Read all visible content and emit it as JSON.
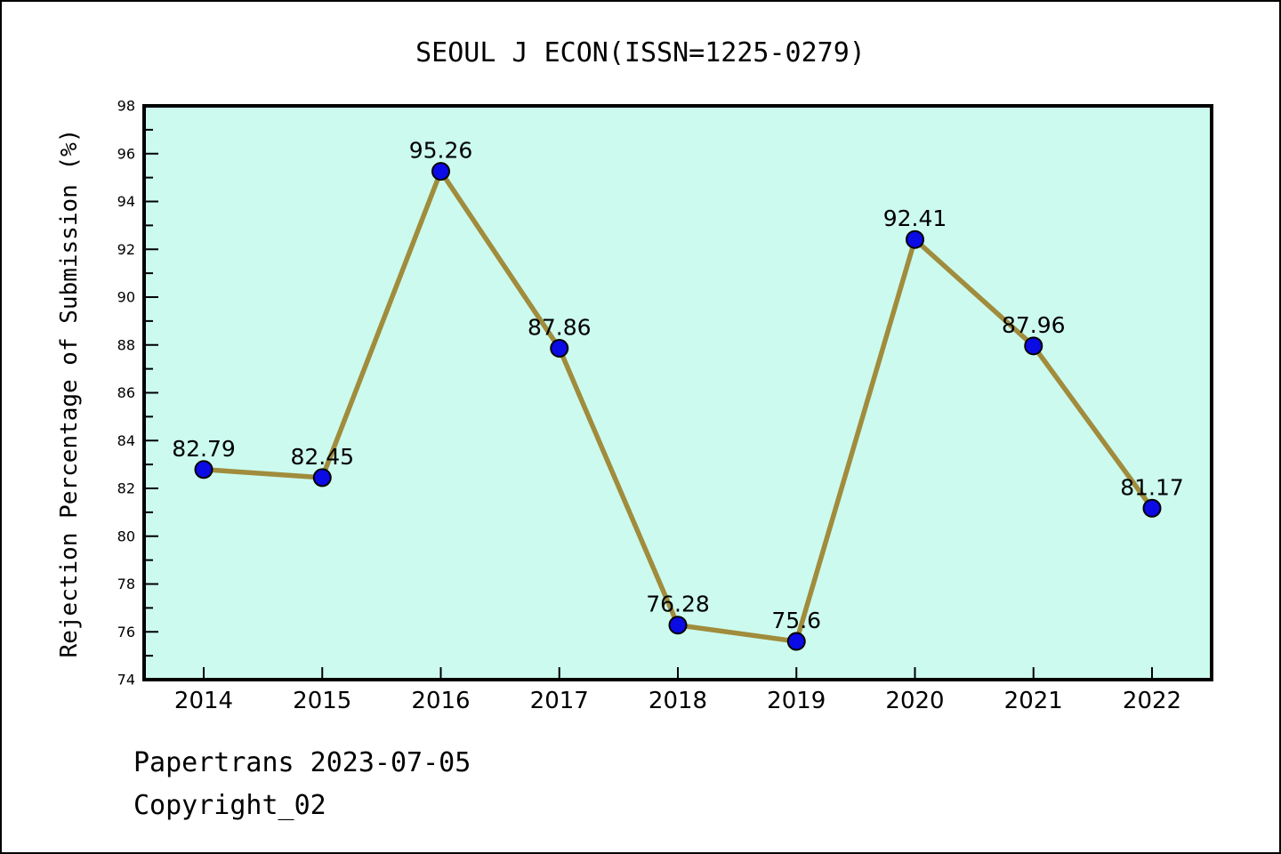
{
  "page": {
    "title": "SEOUL J ECON(ISSN=1225-0279)",
    "footer_line1": "Papertrans 2023-07-05",
    "footer_line2": "Copyright_02"
  },
  "chart_data": {
    "type": "line",
    "title": "SEOUL J ECON(ISSN=1225-0279)",
    "xlabel": "",
    "ylabel": "Rejection Percentage of Submission (%)",
    "categories": [
      2014,
      2015,
      2016,
      2017,
      2018,
      2019,
      2020,
      2021,
      2022
    ],
    "values": [
      82.79,
      82.45,
      95.26,
      87.86,
      76.28,
      75.6,
      92.41,
      87.96,
      81.17
    ],
    "point_labels": [
      "82.79",
      "82.45",
      "95.26",
      "87.86",
      "76.28",
      "75.6",
      "92.41",
      "87.96",
      "81.17"
    ],
    "ylim": [
      74,
      98
    ],
    "y_major_step": 2,
    "y_minor_step": 1,
    "grid": false,
    "legend": "none",
    "tick_direction": "in",
    "colors": {
      "line": "#a08c3c",
      "marker": "#0b0be6",
      "marker_edge": "#000000",
      "plot_bg": "#ccfaee",
      "spine": "#000000",
      "text": "#000000",
      "page_bg": "#ffffff"
    }
  }
}
